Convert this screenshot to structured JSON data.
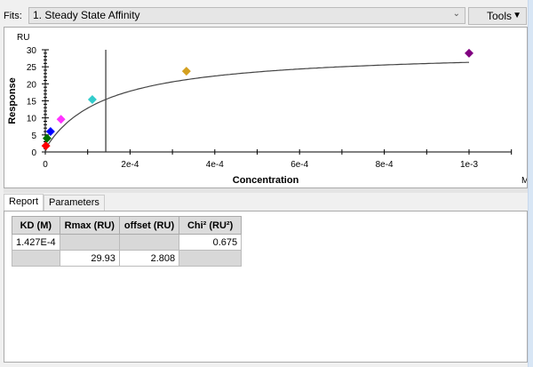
{
  "toolbar": {
    "fits_label": "Fits:",
    "fits_value": "1.  Steady State Affinity",
    "tools_label": "Tools"
  },
  "chart_data": {
    "type": "scatter",
    "xlabel": "Concentration",
    "ylabel": "Response",
    "x_unit": "M",
    "y_unit": "RU",
    "xlim": [
      0,
      0.0011
    ],
    "ylim": [
      0,
      30
    ],
    "x_ticks": [
      {
        "v": 0,
        "label": "0"
      },
      {
        "v": 0.0002,
        "label": "2e-4"
      },
      {
        "v": 0.0004,
        "label": "4e-4"
      },
      {
        "v": 0.0006,
        "label": "6e-4"
      },
      {
        "v": 0.0008,
        "label": "8e-4"
      },
      {
        "v": 0.001,
        "label": "1e-3"
      }
    ],
    "y_ticks": [
      0,
      5,
      10,
      15,
      20,
      25,
      30
    ],
    "points": [
      {
        "x": 1.37e-06,
        "y": 1.8,
        "color": "#ff0000"
      },
      {
        "x": 4.1e-06,
        "y": 4.0,
        "color": "#007000"
      },
      {
        "x": 1.23e-05,
        "y": 6.0,
        "color": "#0000ff"
      },
      {
        "x": 3.7e-05,
        "y": 9.6,
        "color": "#ff33ff"
      },
      {
        "x": 0.000111,
        "y": 15.4,
        "color": "#33cccc"
      },
      {
        "x": 0.000333,
        "y": 23.7,
        "color": "#d4a020"
      },
      {
        "x": 0.001,
        "y": 29.0,
        "color": "#800080"
      }
    ],
    "fit": {
      "model": "steady-state affinity",
      "KD": 0.0001427,
      "Rmax": 29.93,
      "offset": 2.808
    },
    "kd_marker": 0.0001427
  },
  "tabs": [
    {
      "label": "Report",
      "active": true
    },
    {
      "label": "Parameters",
      "active": false
    }
  ],
  "report": {
    "headers": [
      "KD (M)",
      "Rmax (RU)",
      "offset (RU)",
      "Chi² (RU²)"
    ],
    "rows": [
      [
        "1.427E-4",
        "",
        "",
        "0.675"
      ],
      [
        "",
        "29.93",
        "2.808",
        ""
      ]
    ]
  }
}
